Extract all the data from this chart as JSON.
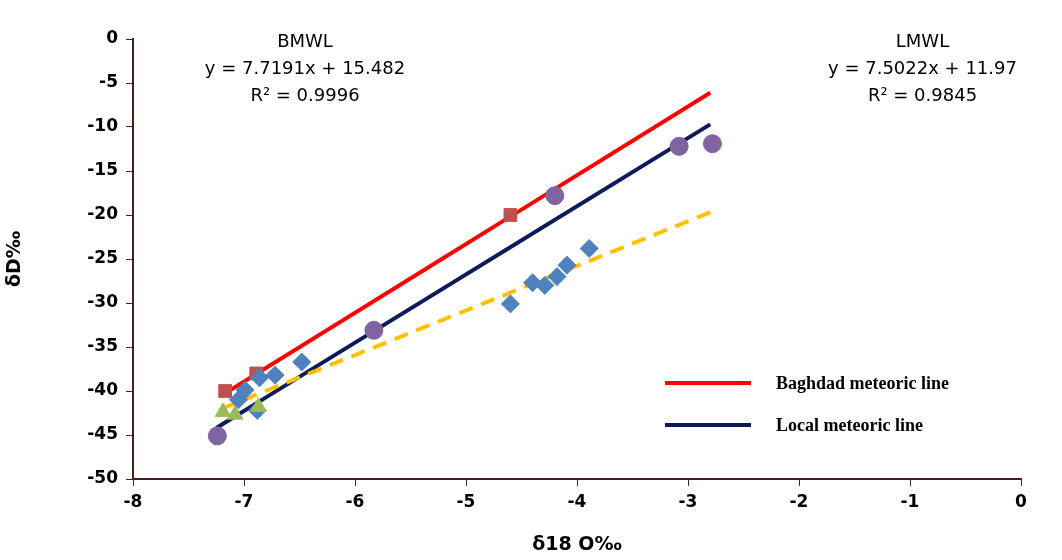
{
  "chart_data": {
    "type": "scatter",
    "xlabel": "δ18 O‰",
    "ylabel": "δD‰",
    "xlim": [
      -8,
      0
    ],
    "xticks": [
      -8,
      -7,
      -6,
      -5,
      -4,
      -3,
      -2,
      -1,
      0
    ],
    "ylim": [
      -50,
      0
    ],
    "yticks": [
      -50,
      -45,
      -40,
      -35,
      -30,
      -25,
      -20,
      -15,
      -10,
      -5,
      0
    ],
    "grid": false,
    "legend": "bottom right",
    "annotations": [
      "BMWL\ny = 7.7191x + 15.482\nR² = 0.9996",
      "LMWL\ny = 7.5022x + 11.97\nR² = 0.9845"
    ],
    "series": [
      {
        "type": "line",
        "name": "Baghdad meteoric line",
        "color": "#ff0000",
        "x": [
          -7.2,
          -2.8
        ],
        "values": [
          -40.5,
          -6.1
        ],
        "line_style": "solid",
        "marker": "none"
      },
      {
        "type": "line",
        "name": "Local meteoric line",
        "color": "#0d1a5c",
        "x": [
          -7.25,
          -2.8
        ],
        "values": [
          -44.2,
          -9.7
        ],
        "line_style": "solid",
        "marker": "none"
      },
      {
        "type": "line",
        "color": "#ffc000",
        "x": [
          -7.2,
          -2.8
        ],
        "values": [
          -42,
          -19.7
        ],
        "line_style": "dashed",
        "marker": "none"
      },
      {
        "type": "scatter",
        "color": "#c0504d",
        "marker": "square",
        "x": [
          -7.17,
          -6.89,
          -4.6
        ],
        "values": [
          -40,
          -38,
          -20
        ]
      },
      {
        "type": "scatter",
        "color": "#8064a2",
        "marker": "circle",
        "x": [
          -7.24,
          -5.83,
          -4.2,
          -3.08,
          -2.78
        ],
        "values": [
          -45.1,
          -33.1,
          -17.8,
          -12.2,
          -11.9
        ]
      },
      {
        "type": "scatter",
        "color": "#4f81bd",
        "marker": "diamond",
        "x": [
          -4.6,
          -4.4,
          -4.29,
          -4.18,
          -4.09,
          -3.89,
          -6.48,
          -6.72,
          -6.86,
          -6.99,
          -7.05,
          -6.88
        ],
        "values": [
          -30.1,
          -27.7,
          -28,
          -27,
          -25.7,
          -23.8,
          -36.7,
          -38.2,
          -38.5,
          -39.9,
          -41,
          -42.2
        ]
      },
      {
        "type": "scatter",
        "color": "#9bbb59",
        "marker": "triangle",
        "x": [
          -7.19,
          -7.08,
          -6.87
        ],
        "values": [
          -42.4,
          -42.7,
          -41.8
        ]
      }
    ]
  }
}
